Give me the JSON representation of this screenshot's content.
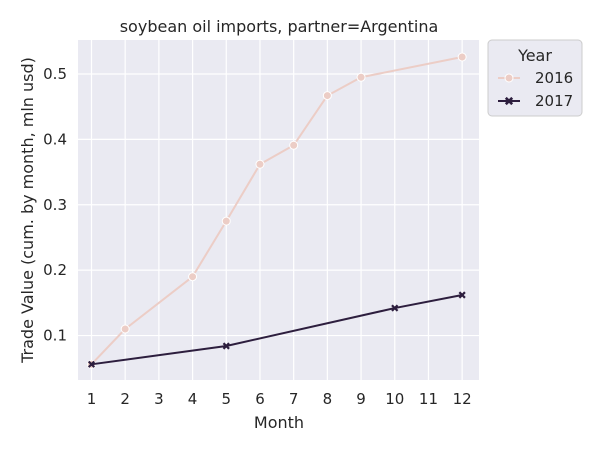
{
  "chart_data": {
    "type": "line",
    "title": "soybean oil imports, partner=Argentina",
    "xlabel": "Month",
    "ylabel": "Trade Value (cum. by month, mln usd)",
    "x_ticks": [
      "1",
      "2",
      "3",
      "4",
      "5",
      "6",
      "7",
      "8",
      "9",
      "10",
      "11",
      "12"
    ],
    "y_ticks": [
      "0.1",
      "0.2",
      "0.3",
      "0.4",
      "0.5"
    ],
    "xlim": [
      0.6,
      12.5
    ],
    "ylim": [
      0.032,
      0.552
    ],
    "grid": true,
    "legend": {
      "title": "Year",
      "placement": "outside-top-right"
    },
    "series": [
      {
        "name": "2016",
        "color": "#eccdc6",
        "marker": "circle",
        "x": [
          1,
          2,
          4,
          5,
          6,
          7,
          8,
          9,
          12
        ],
        "y": [
          0.056,
          0.11,
          0.19,
          0.275,
          0.362,
          0.391,
          0.467,
          0.495,
          0.526
        ]
      },
      {
        "name": "2017",
        "color": "#2d1e3e",
        "marker": "x",
        "x": [
          1,
          5,
          10,
          12
        ],
        "y": [
          0.056,
          0.084,
          0.142,
          0.162
        ]
      }
    ]
  }
}
